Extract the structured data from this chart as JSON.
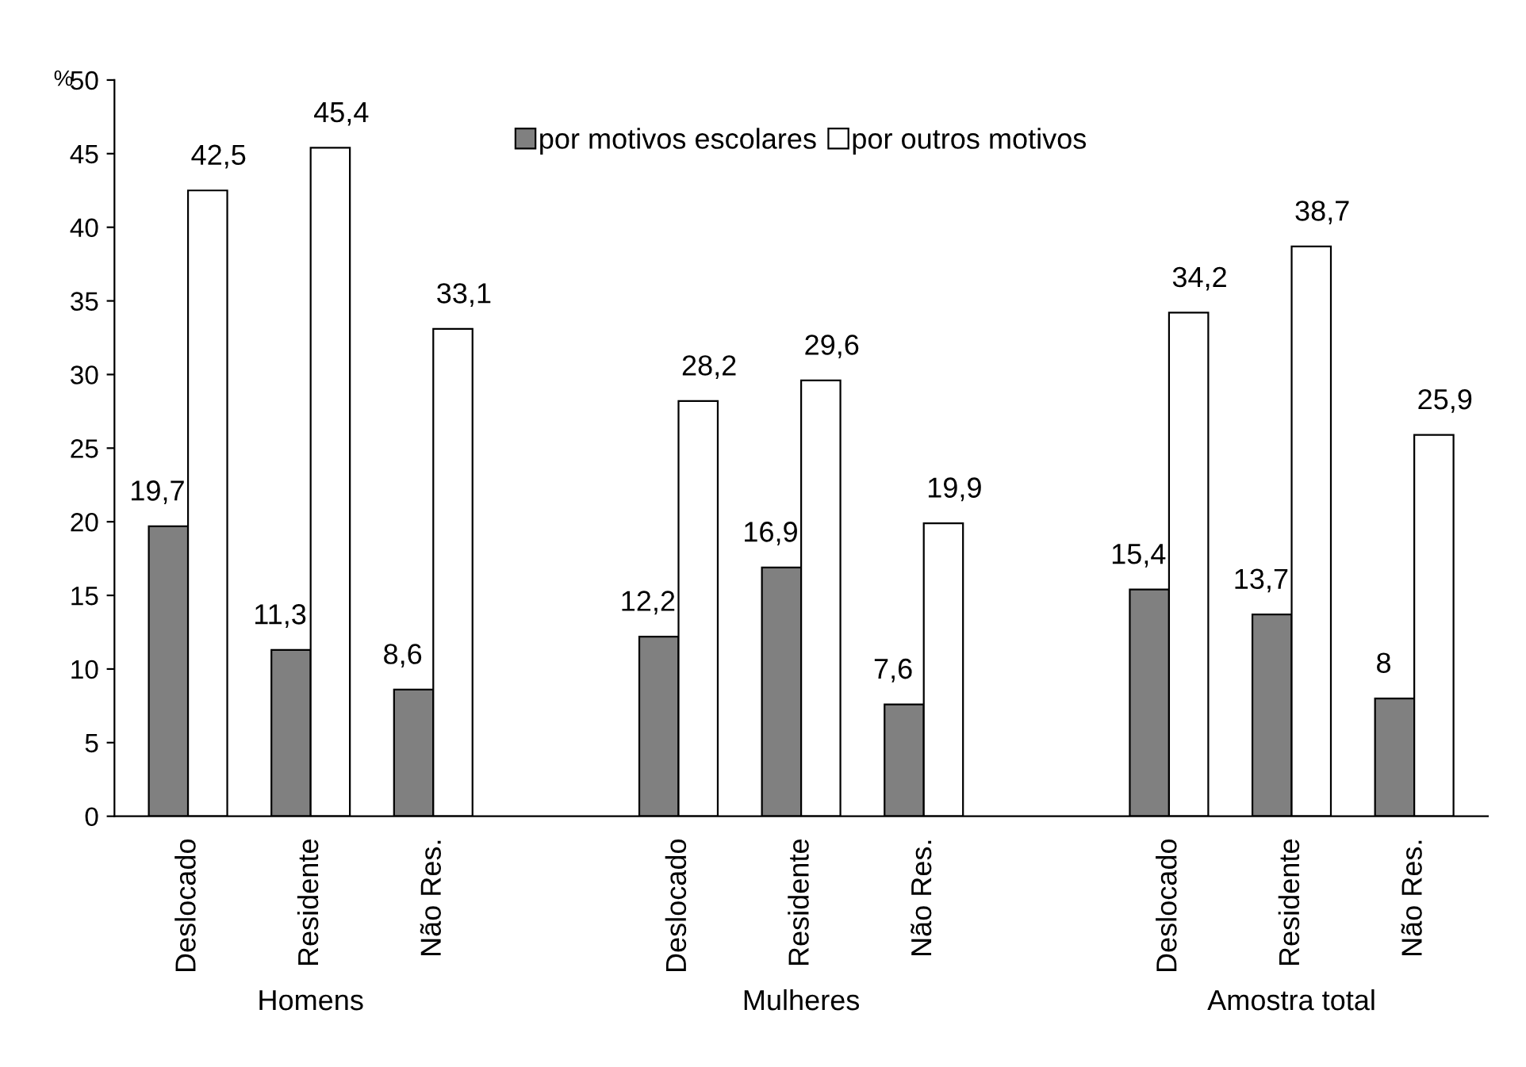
{
  "chart_data": {
    "type": "bar",
    "ylabel": "%",
    "categories": [
      "Deslocado",
      "Residente",
      "Não Res.",
      null,
      "Deslocado",
      "Residente",
      "Não Res.",
      null,
      "Deslocado",
      "Residente",
      "Não Res."
    ],
    "series": [
      {
        "name": "por motivos escolares",
        "color": "#808080",
        "values": [
          19.7,
          11.3,
          8.6,
          null,
          12.2,
          16.9,
          7.6,
          null,
          15.4,
          13.7,
          8
        ],
        "value_labels": [
          "19,7",
          "11,3",
          "8,6",
          null,
          "12,2",
          "16,9",
          "7,6",
          null,
          "15,4",
          "13,7",
          "8"
        ]
      },
      {
        "name": "por outros motivos",
        "color": "#ffffff",
        "values": [
          42.5,
          45.4,
          33.1,
          null,
          28.2,
          29.6,
          19.9,
          null,
          34.2,
          38.7,
          25.9
        ],
        "value_labels": [
          "42,5",
          "45,4",
          "33,1",
          null,
          "28,2",
          "29,6",
          "19,9",
          null,
          "34,2",
          "38,7",
          "25,9"
        ]
      }
    ],
    "annotations": [
      "Homens",
      "Mulheres",
      "Amostra total"
    ],
    "ylim": [
      0,
      50
    ],
    "yticks": [
      0,
      5,
      10,
      15,
      20,
      25,
      30,
      35,
      40,
      45,
      50
    ],
    "grid": false,
    "legend": "top"
  }
}
